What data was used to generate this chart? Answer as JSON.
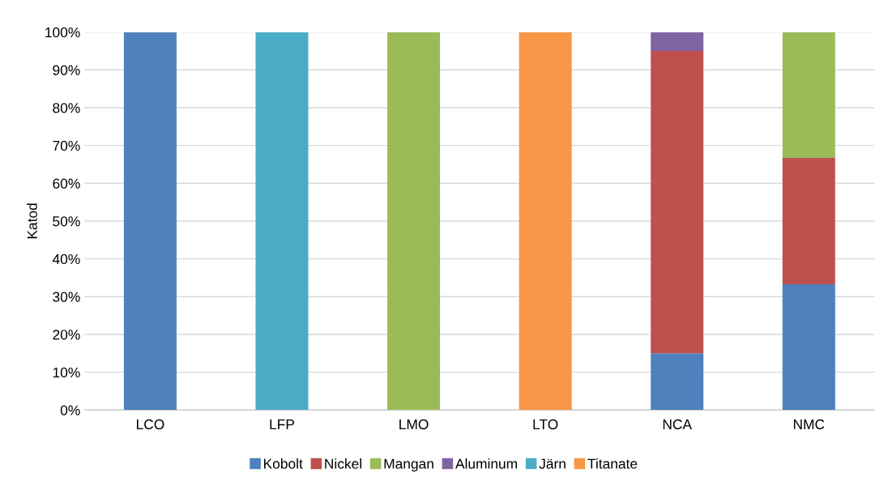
{
  "chart_data": {
    "type": "bar",
    "stacked": true,
    "ylabel": "Katod",
    "categories": [
      "LCO",
      "LFP",
      "LMO",
      "LTO",
      "NCA",
      "NMC"
    ],
    "series": [
      {
        "name": "Kobolt",
        "color": "#4f81bd",
        "values": [
          100,
          null,
          null,
          null,
          15,
          33.3
        ]
      },
      {
        "name": "Nickel",
        "color": "#c0504d",
        "values": [
          null,
          null,
          null,
          null,
          80,
          33.4
        ]
      },
      {
        "name": "Mangan",
        "color": "#9bbb59",
        "values": [
          null,
          null,
          100,
          null,
          null,
          33.3
        ]
      },
      {
        "name": "Aluminum",
        "color": "#8064a2",
        "values": [
          null,
          null,
          null,
          null,
          5,
          null
        ]
      },
      {
        "name": "Järn",
        "color": "#4bacc6",
        "values": [
          null,
          100,
          null,
          null,
          null,
          null
        ]
      },
      {
        "name": "Titanate",
        "color": "#f79646",
        "values": [
          null,
          null,
          null,
          100,
          null,
          null
        ]
      }
    ],
    "ylim": [
      0,
      100
    ],
    "yticks": [
      {
        "value": 0,
        "label": "0%"
      },
      {
        "value": 10,
        "label": "10%"
      },
      {
        "value": 20,
        "label": "20%"
      },
      {
        "value": 30,
        "label": "30%"
      },
      {
        "value": 40,
        "label": "40%"
      },
      {
        "value": 50,
        "label": "50%"
      },
      {
        "value": 60,
        "label": "60%"
      },
      {
        "value": 70,
        "label": "70%"
      },
      {
        "value": 80,
        "label": "80%"
      },
      {
        "value": 90,
        "label": "90%"
      },
      {
        "value": 100,
        "label": "100%"
      }
    ],
    "grid": "y",
    "legend": "bottom"
  }
}
